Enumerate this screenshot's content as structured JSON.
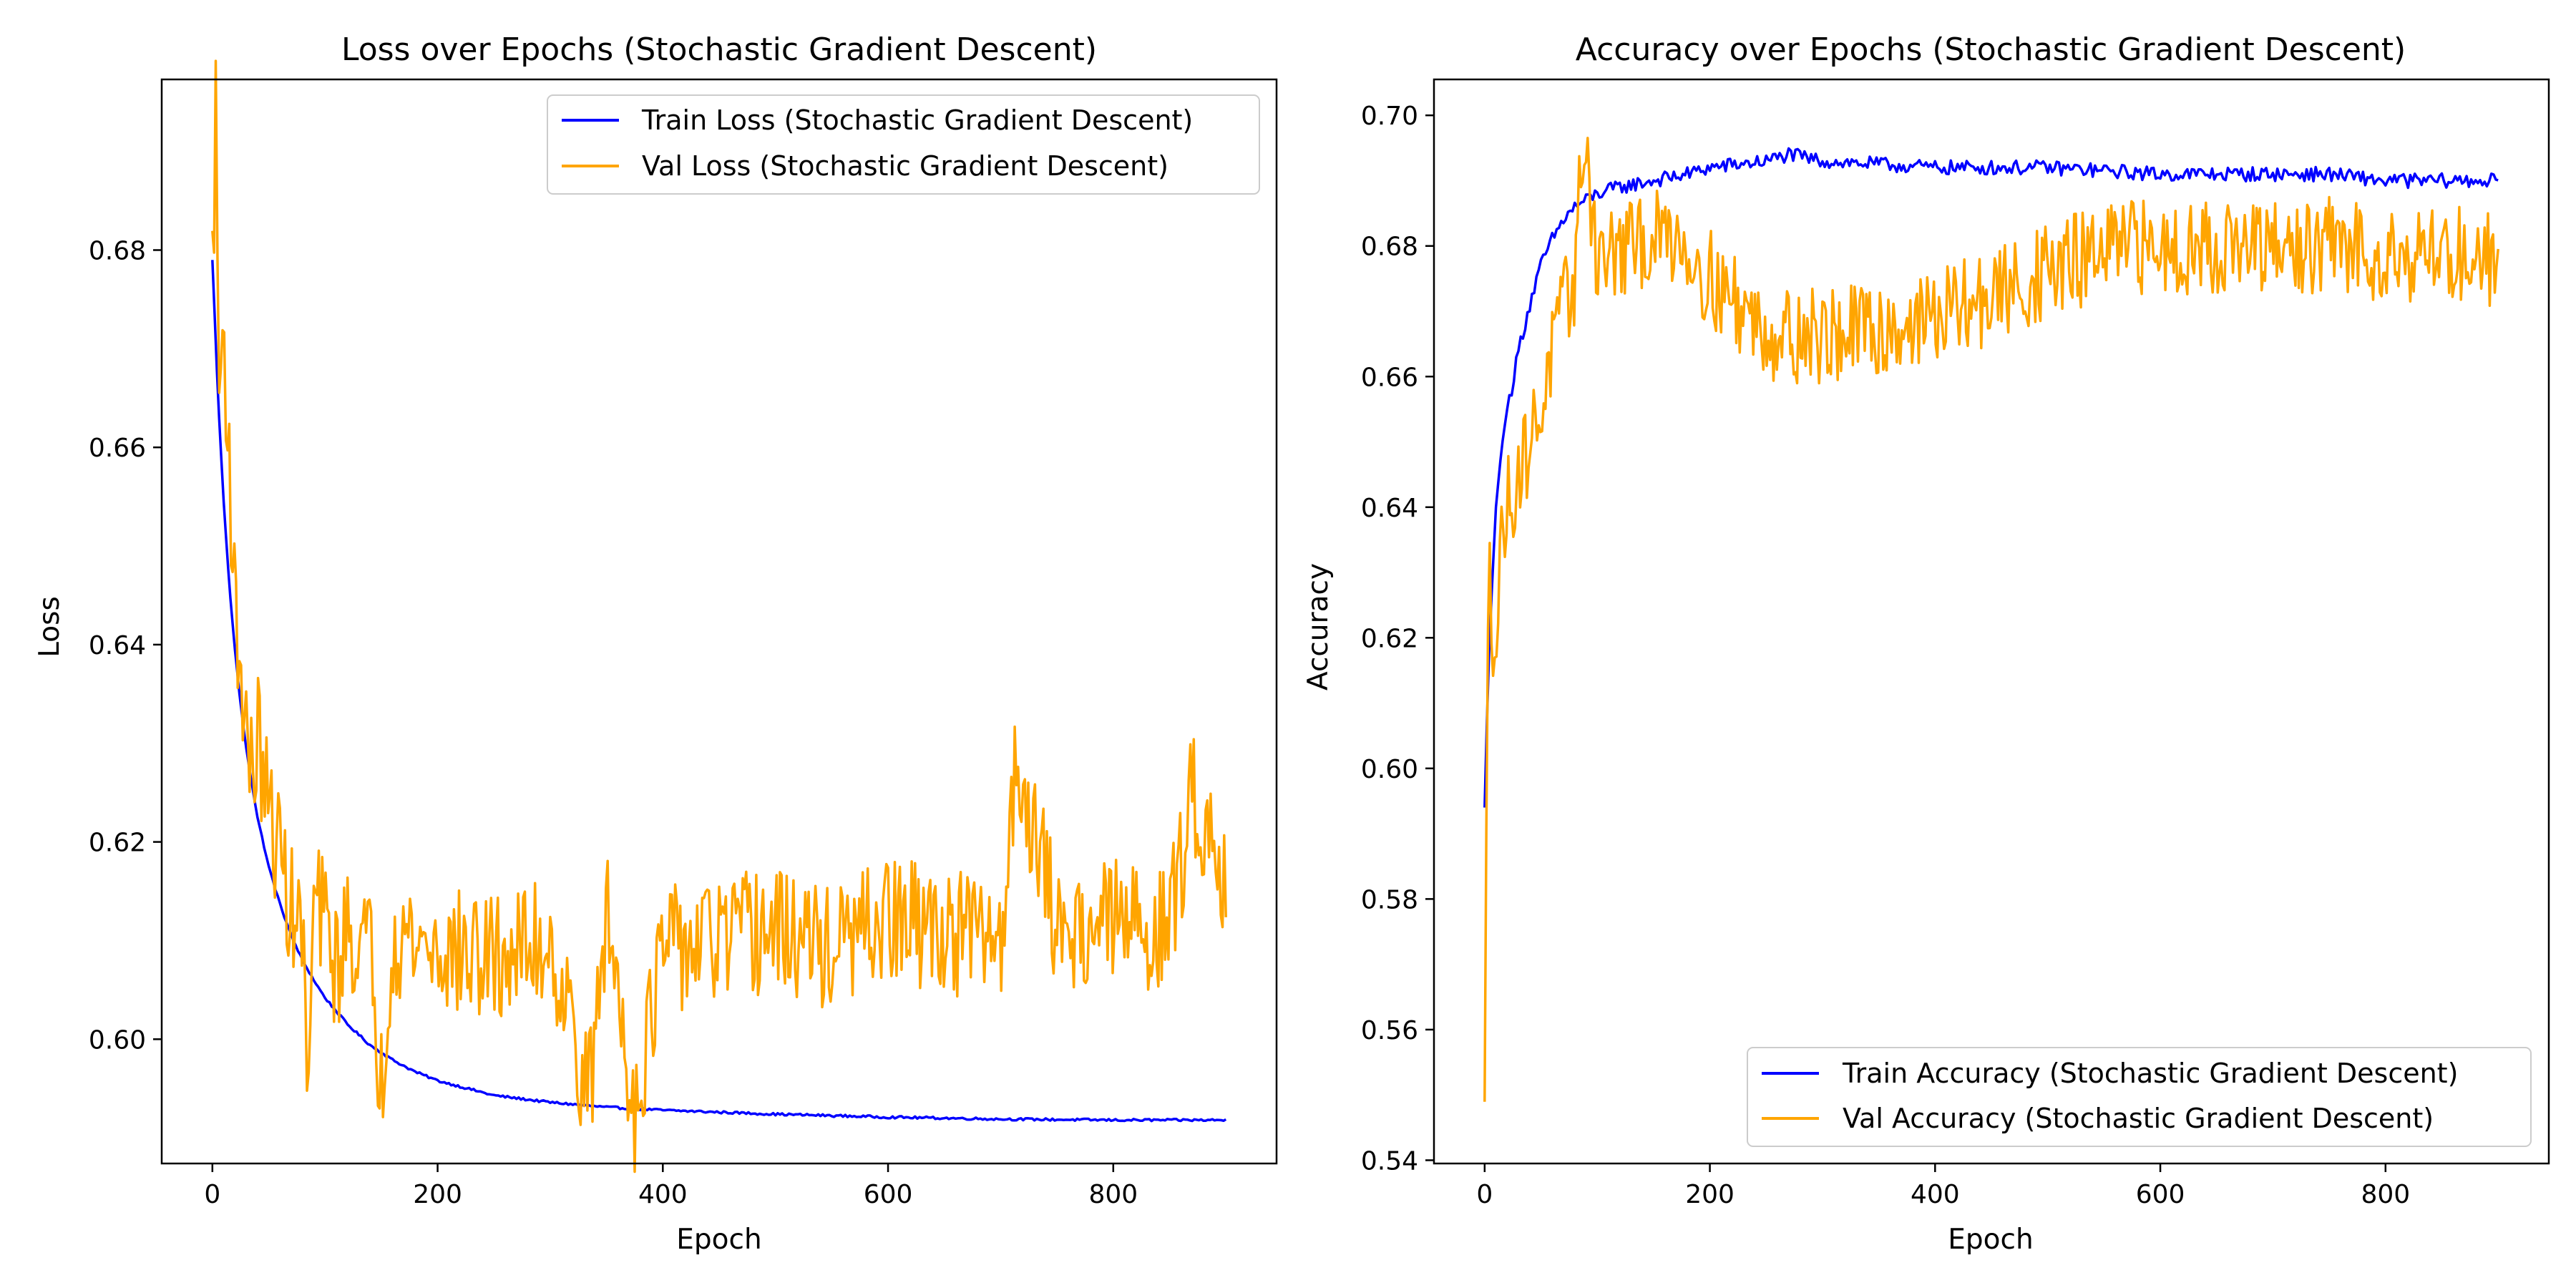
{
  "chart_data": [
    {
      "type": "line",
      "title": "Loss over Epochs (Stochastic Gradient Descent)",
      "xlabel": "Epoch",
      "ylabel": "Loss",
      "xlim": [
        -45,
        945
      ],
      "ylim": [
        0.5874,
        0.6973
      ],
      "xticks": [
        0,
        200,
        400,
        600,
        800
      ],
      "yticks": [
        0.6,
        0.62,
        0.64,
        0.66,
        0.68
      ],
      "xtick_labels": [
        "0",
        "200",
        "400",
        "600",
        "800"
      ],
      "ytick_labels": [
        "0.60",
        "0.62",
        "0.64",
        "0.66",
        "0.68"
      ],
      "grid": false,
      "legend_position": "top-right",
      "series": [
        {
          "name": "Train Loss (Stochastic Gradient Descent)",
          "color": "#0000ff",
          "x": [
            0,
            5,
            10,
            15,
            20,
            25,
            30,
            40,
            50,
            60,
            70,
            80,
            90,
            100,
            120,
            140,
            160,
            180,
            200,
            250,
            300,
            350,
            400,
            450,
            500,
            600,
            700,
            800,
            900
          ],
          "values": [
            0.679,
            0.665,
            0.6545,
            0.646,
            0.6395,
            0.634,
            0.6295,
            0.6225,
            0.6175,
            0.6137,
            0.6105,
            0.608,
            0.606,
            0.6042,
            0.6015,
            0.5994,
            0.5979,
            0.5967,
            0.5958,
            0.5943,
            0.5936,
            0.5931,
            0.5928,
            0.5926,
            0.5924,
            0.5921,
            0.5919,
            0.5918,
            0.5918
          ]
        },
        {
          "name": "Val Loss (Stochastic Gradient Descent)",
          "color": "#ffa500",
          "x": [
            0,
            3,
            6,
            10,
            15,
            20,
            25,
            30,
            35,
            40,
            50,
            60,
            70,
            80,
            85,
            90,
            100,
            110,
            120,
            140,
            150,
            160,
            200,
            250,
            300,
            335,
            350,
            375,
            400,
            450,
            500,
            550,
            600,
            650,
            700,
            715,
            750,
            800,
            850,
            870,
            900
          ],
          "values": [
            0.679,
            0.693,
            0.666,
            0.672,
            0.659,
            0.643,
            0.638,
            0.632,
            0.626,
            0.631,
            0.623,
            0.619,
            0.613,
            0.611,
            0.593,
            0.614,
            0.612,
            0.607,
            0.611,
            0.609,
            0.595,
            0.611,
            0.609,
            0.608,
            0.61,
            0.594,
            0.613,
            0.593,
            0.609,
            0.61,
            0.611,
            0.609,
            0.612,
            0.611,
            0.61,
            0.629,
            0.611,
            0.612,
            0.611,
            0.625,
            0.617
          ]
        }
      ]
    },
    {
      "type": "line",
      "title": "Accuracy over Epochs (Stochastic Gradient Descent)",
      "xlabel": "Epoch",
      "ylabel": "Accuracy",
      "xlim": [
        -45,
        945
      ],
      "ylim": [
        0.5395,
        0.7055
      ],
      "xticks": [
        0,
        200,
        400,
        600,
        800
      ],
      "yticks": [
        0.54,
        0.56,
        0.58,
        0.6,
        0.62,
        0.64,
        0.66,
        0.68,
        0.7
      ],
      "xtick_labels": [
        "0",
        "200",
        "400",
        "600",
        "800"
      ],
      "ytick_labels": [
        "0.54",
        "0.56",
        "0.58",
        "0.60",
        "0.62",
        "0.64",
        "0.66",
        "0.68",
        "0.70"
      ],
      "grid": false,
      "legend_position": "bottom-right",
      "series": [
        {
          "name": "Train Accuracy (Stochastic Gradient Descent)",
          "color": "#0000ff",
          "x": [
            0,
            3,
            6,
            10,
            15,
            20,
            25,
            30,
            40,
            50,
            60,
            70,
            80,
            100,
            120,
            150,
            180,
            200,
            250,
            270,
            300,
            400,
            500,
            600,
            700,
            750,
            800,
            900
          ],
          "values": [
            0.594,
            0.614,
            0.626,
            0.64,
            0.649,
            0.655,
            0.659,
            0.664,
            0.671,
            0.677,
            0.681,
            0.684,
            0.686,
            0.688,
            0.689,
            0.69,
            0.691,
            0.692,
            0.693,
            0.694,
            0.693,
            0.692,
            0.692,
            0.691,
            0.691,
            0.691,
            0.69,
            0.69
          ]
        },
        {
          "name": "Val Accuracy (Stochastic Gradient Descent)",
          "color": "#ffa500",
          "x": [
            0,
            2,
            4,
            6,
            10,
            15,
            20,
            30,
            40,
            50,
            60,
            70,
            80,
            88,
            100,
            120,
            150,
            170,
            200,
            250,
            300,
            350,
            400,
            450,
            500,
            550,
            600,
            650,
            700,
            750,
            800,
            850,
            900
          ],
          "values": [
            0.545,
            0.6,
            0.646,
            0.625,
            0.616,
            0.636,
            0.64,
            0.645,
            0.65,
            0.655,
            0.664,
            0.67,
            0.675,
            0.698,
            0.678,
            0.679,
            0.681,
            0.682,
            0.675,
            0.667,
            0.666,
            0.667,
            0.669,
            0.672,
            0.676,
            0.679,
            0.68,
            0.68,
            0.679,
            0.68,
            0.679,
            0.679,
            0.678
          ]
        }
      ]
    }
  ]
}
